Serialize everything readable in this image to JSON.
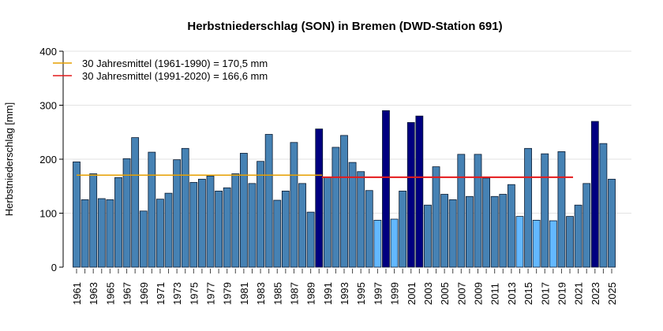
{
  "chart_data": {
    "type": "bar",
    "title": "Herbstniederschlag (SON) in Bremen (DWD-Station 691)",
    "xlabel": "",
    "ylabel": "Herbstniederschlag [mm]",
    "ylim": [
      0,
      400
    ],
    "yticks": [
      0,
      100,
      200,
      300,
      400
    ],
    "grid": true,
    "legend_placement": "top-left",
    "categories": [
      1961,
      1962,
      1963,
      1964,
      1965,
      1966,
      1967,
      1968,
      1969,
      1970,
      1971,
      1972,
      1973,
      1974,
      1975,
      1976,
      1977,
      1978,
      1979,
      1980,
      1981,
      1982,
      1983,
      1984,
      1985,
      1986,
      1987,
      1988,
      1989,
      1990,
      1991,
      1992,
      1993,
      1994,
      1995,
      1996,
      1997,
      1998,
      1999,
      2000,
      2001,
      2002,
      2003,
      2004,
      2005,
      2006,
      2007,
      2008,
      2009,
      2010,
      2011,
      2012,
      2013,
      2014,
      2015,
      2016,
      2017,
      2018,
      2019,
      2020,
      2021,
      2022,
      2023,
      2024,
      2025
    ],
    "values": [
      195,
      125,
      173,
      127,
      125,
      166,
      201,
      240,
      104,
      213,
      126,
      137,
      199,
      220,
      157,
      163,
      169,
      141,
      147,
      173,
      211,
      155,
      196,
      246,
      124,
      141,
      231,
      155,
      102,
      256,
      167,
      222,
      244,
      194,
      177,
      142,
      87,
      290,
      89,
      141,
      268,
      280,
      115,
      186,
      135,
      125,
      209,
      131,
      209,
      165,
      131,
      135,
      153,
      94,
      220,
      87,
      210,
      86,
      214,
      94,
      115,
      155,
      270,
      229,
      163
    ],
    "bar_class": [
      "n",
      "n",
      "n",
      "n",
      "n",
      "n",
      "n",
      "n",
      "n",
      "n",
      "n",
      "n",
      "n",
      "n",
      "n",
      "n",
      "n",
      "n",
      "n",
      "n",
      "n",
      "n",
      "n",
      "n",
      "n",
      "n",
      "n",
      "n",
      "n",
      "wet",
      "n",
      "n",
      "n",
      "n",
      "n",
      "n",
      "dry",
      "wet",
      "dry",
      "n",
      "wet",
      "wet",
      "n",
      "n",
      "n",
      "n",
      "n",
      "n",
      "n",
      "n",
      "n",
      "n",
      "n",
      "dry",
      "n",
      "dry",
      "n",
      "dry",
      "n",
      "n",
      "n",
      "n",
      "wet",
      "n",
      "n"
    ],
    "colors": {
      "n": "#4682b4",
      "wet": "#000080",
      "dry": "#63b8ff"
    },
    "reference_lines": [
      {
        "label": "30 Jahresmittel (1961-1990) = 170,5 mm",
        "value": 170.5,
        "from": 1961,
        "to": 1990,
        "color": "#e69f00"
      },
      {
        "label": "30 Jahresmittel (1991-2020) = 166,6 mm",
        "value": 166.6,
        "from": 1991,
        "to": 2020,
        "color": "#e41a1c"
      }
    ]
  }
}
